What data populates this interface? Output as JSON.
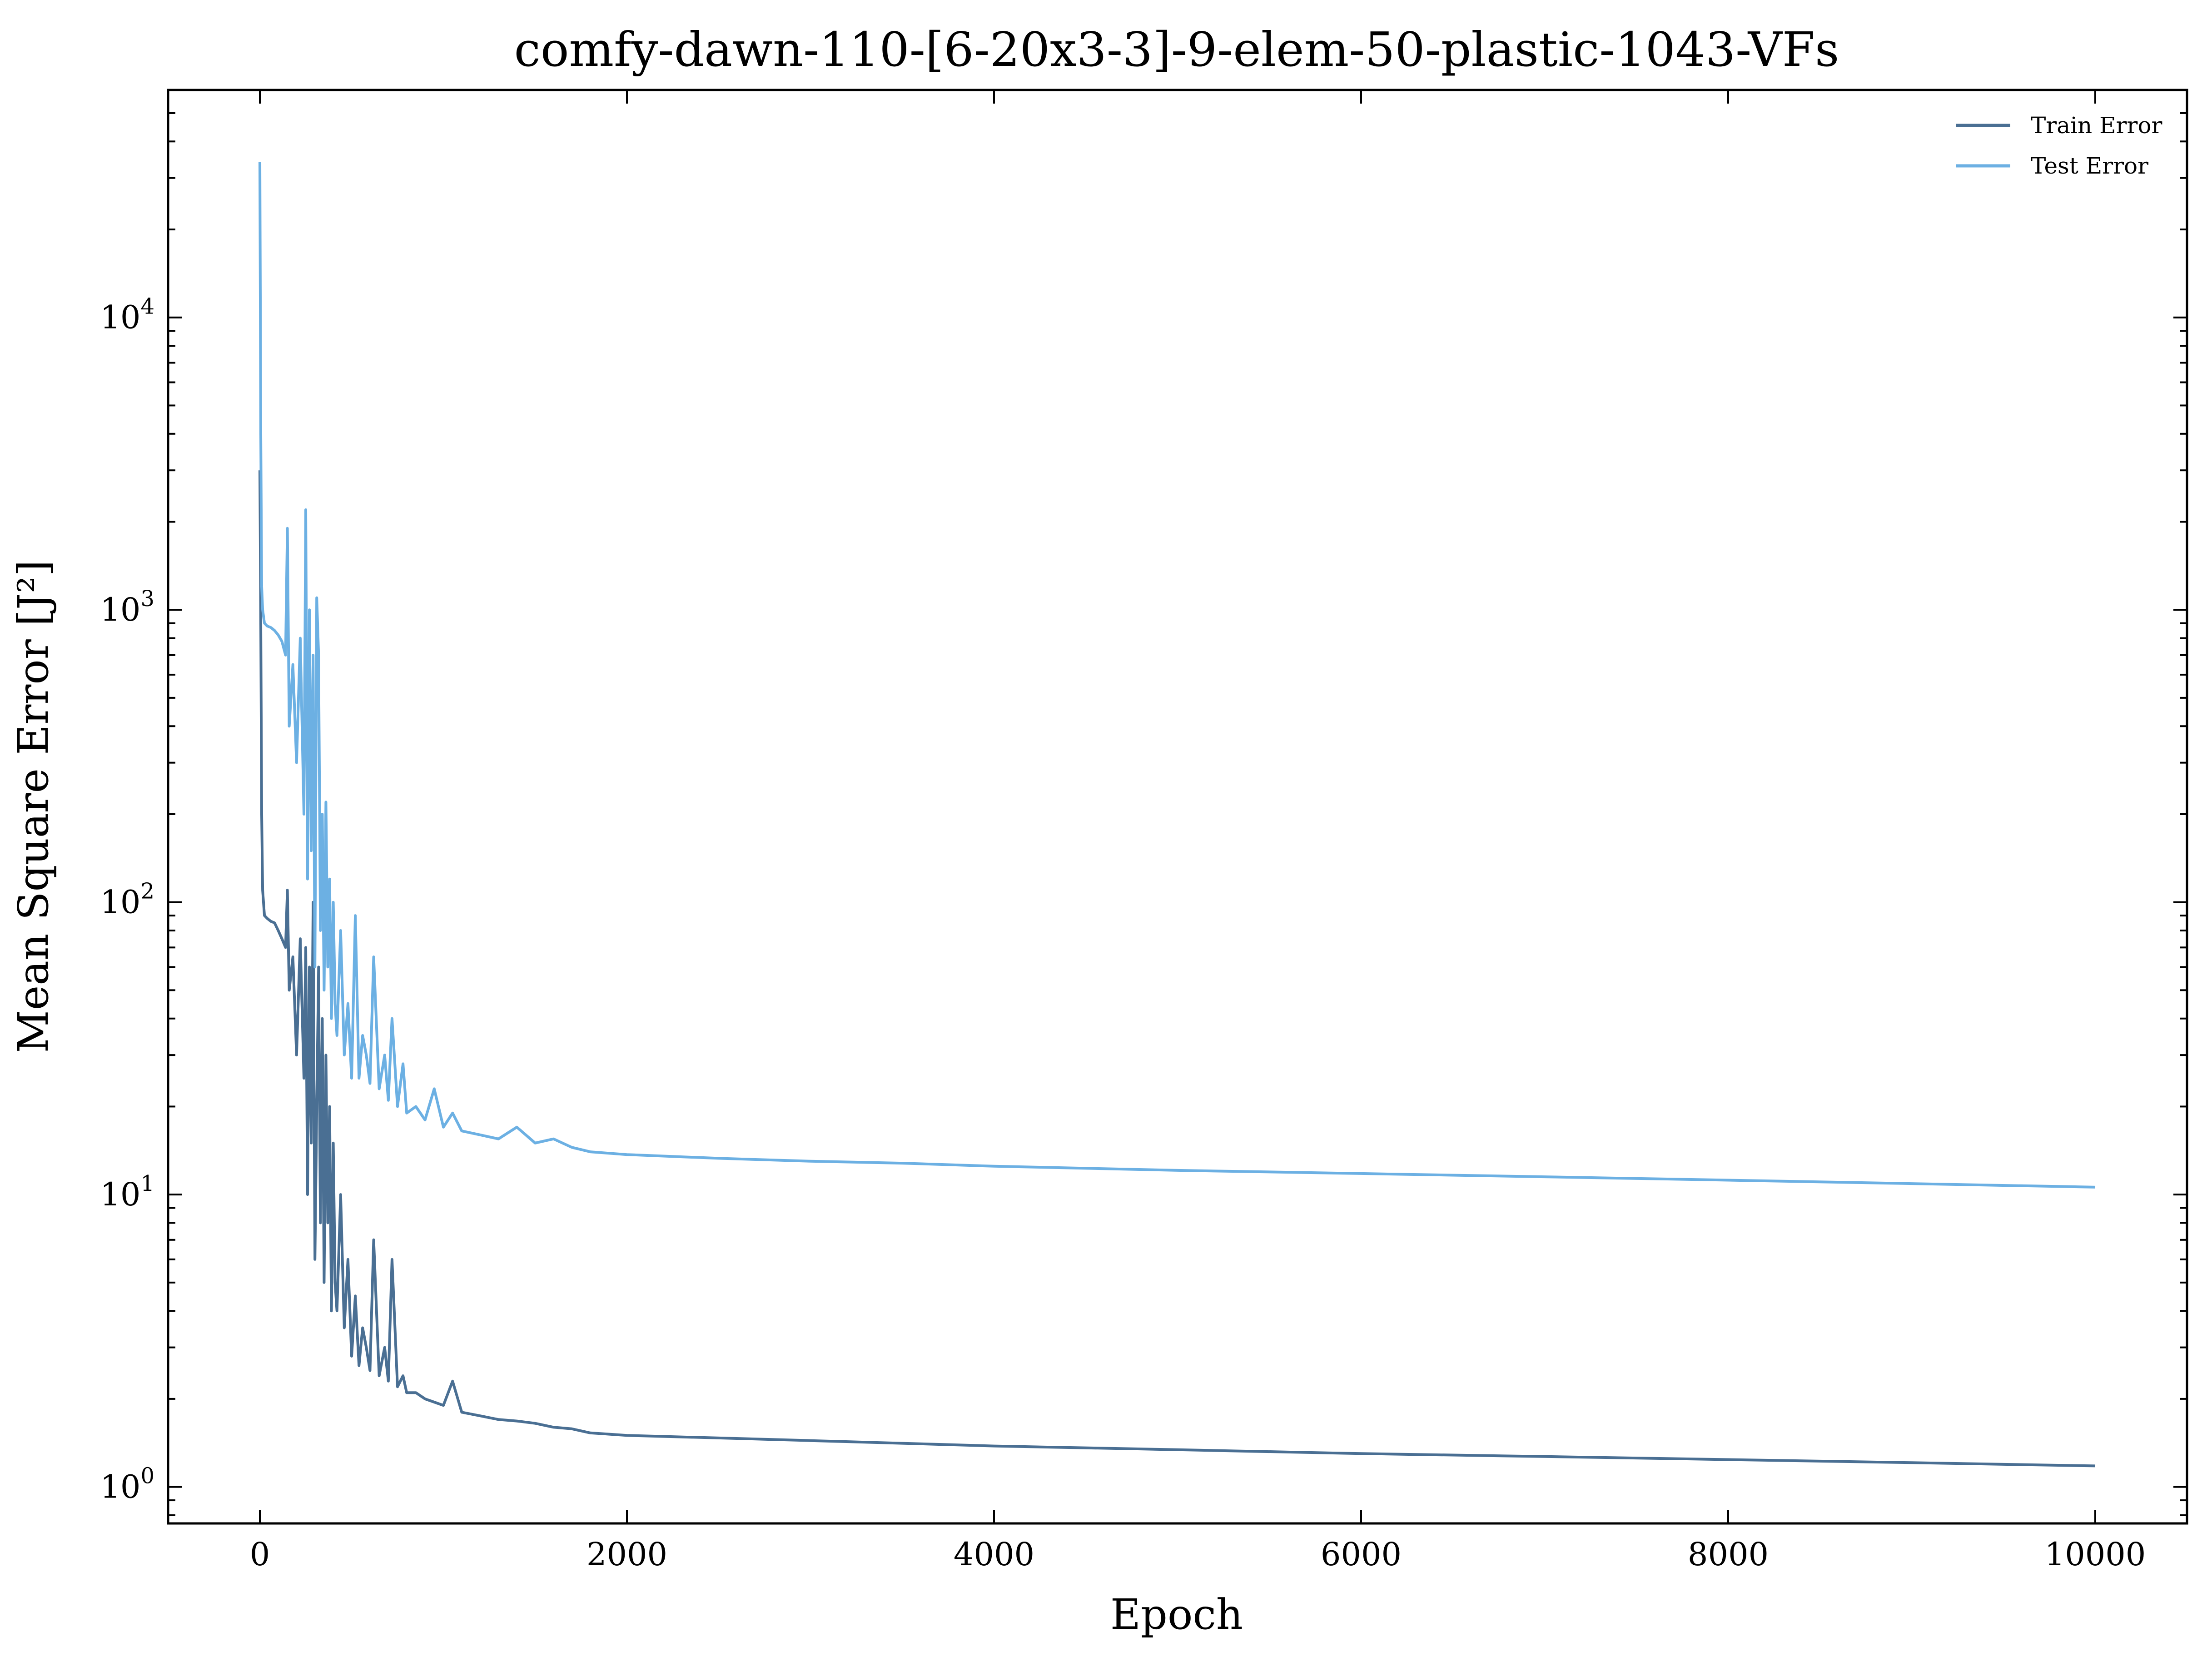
{
  "chart_data": {
    "type": "line",
    "title": "comfy-dawn-110-[6-20x3-3]-9-elem-50-plastic-1043-VFs",
    "xlabel": "Epoch",
    "ylabel": "Mean Square Error [J²]",
    "xlim": [
      -500,
      10500
    ],
    "ylim": [
      0.75,
      60000
    ],
    "yscale": "log",
    "grid": false,
    "legend_position": "top-right",
    "x_ticks": [
      0,
      2000,
      4000,
      6000,
      8000,
      10000
    ],
    "y_ticks": [
      {
        "value": 1,
        "base": "10",
        "exp": "0"
      },
      {
        "value": 10,
        "base": "10",
        "exp": "1"
      },
      {
        "value": 100,
        "base": "10",
        "exp": "2"
      },
      {
        "value": 1000,
        "base": "10",
        "exp": "3"
      },
      {
        "value": 10000,
        "base": "10",
        "exp": "4"
      }
    ],
    "series": [
      {
        "name": "Train Error",
        "color": "#4a6f93",
        "x": [
          0,
          5,
          10,
          15,
          25,
          40,
          60,
          80,
          100,
          120,
          140,
          150,
          160,
          180,
          200,
          220,
          240,
          250,
          260,
          270,
          280,
          290,
          300,
          310,
          320,
          330,
          340,
          350,
          360,
          370,
          380,
          390,
          400,
          410,
          420,
          440,
          460,
          480,
          500,
          520,
          540,
          560,
          580,
          600,
          620,
          650,
          680,
          700,
          720,
          750,
          780,
          800,
          850,
          900,
          950,
          1000,
          1050,
          1100,
          1200,
          1300,
          1400,
          1500,
          1600,
          1700,
          1800,
          2000,
          2500,
          3000,
          3500,
          4000,
          5000,
          6000,
          7000,
          8000,
          9000,
          10000
        ],
        "y": [
          3000,
          900,
          200,
          110,
          90,
          88,
          86,
          85,
          80,
          75,
          70,
          110,
          50,
          65,
          30,
          75,
          25,
          70,
          10,
          60,
          15,
          100,
          6,
          20,
          60,
          8,
          40,
          5,
          30,
          8,
          20,
          4,
          15,
          5,
          4,
          10,
          3.5,
          6,
          2.8,
          4.5,
          2.6,
          3.5,
          3.0,
          2.5,
          7,
          2.4,
          3,
          2.3,
          6,
          2.2,
          2.4,
          2.1,
          2.1,
          2.0,
          1.95,
          1.9,
          2.3,
          1.8,
          1.75,
          1.7,
          1.68,
          1.65,
          1.6,
          1.58,
          1.53,
          1.5,
          1.47,
          1.44,
          1.41,
          1.38,
          1.34,
          1.3,
          1.27,
          1.24,
          1.21,
          1.18
        ]
      },
      {
        "name": "Test Error",
        "color": "#6cb0e3",
        "x": [
          0,
          5,
          10,
          15,
          25,
          40,
          60,
          80,
          100,
          120,
          140,
          150,
          160,
          180,
          200,
          220,
          240,
          250,
          260,
          270,
          280,
          290,
          300,
          310,
          320,
          330,
          340,
          350,
          360,
          370,
          380,
          390,
          400,
          410,
          420,
          440,
          460,
          480,
          500,
          520,
          540,
          560,
          580,
          600,
          620,
          650,
          680,
          700,
          720,
          750,
          780,
          800,
          850,
          900,
          950,
          1000,
          1050,
          1100,
          1200,
          1300,
          1400,
          1500,
          1600,
          1700,
          1800,
          2000,
          2500,
          3000,
          3500,
          4000,
          5000,
          6000,
          7000,
          8000,
          9000,
          10000
        ],
        "y": [
          34000,
          4000,
          1200,
          1000,
          900,
          880,
          870,
          850,
          820,
          780,
          700,
          1900,
          400,
          650,
          300,
          800,
          200,
          2200,
          120,
          1000,
          150,
          700,
          60,
          1100,
          700,
          80,
          200,
          50,
          220,
          60,
          120,
          40,
          100,
          45,
          35,
          80,
          30,
          45,
          25,
          90,
          25,
          35,
          30,
          24,
          65,
          23,
          30,
          21,
          40,
          20,
          28,
          19,
          20,
          18,
          23,
          17,
          19,
          16.5,
          16,
          15.5,
          17,
          15,
          15.5,
          14.5,
          14,
          13.7,
          13.3,
          13,
          12.8,
          12.5,
          12.1,
          11.8,
          11.5,
          11.2,
          10.9,
          10.6
        ]
      }
    ]
  }
}
